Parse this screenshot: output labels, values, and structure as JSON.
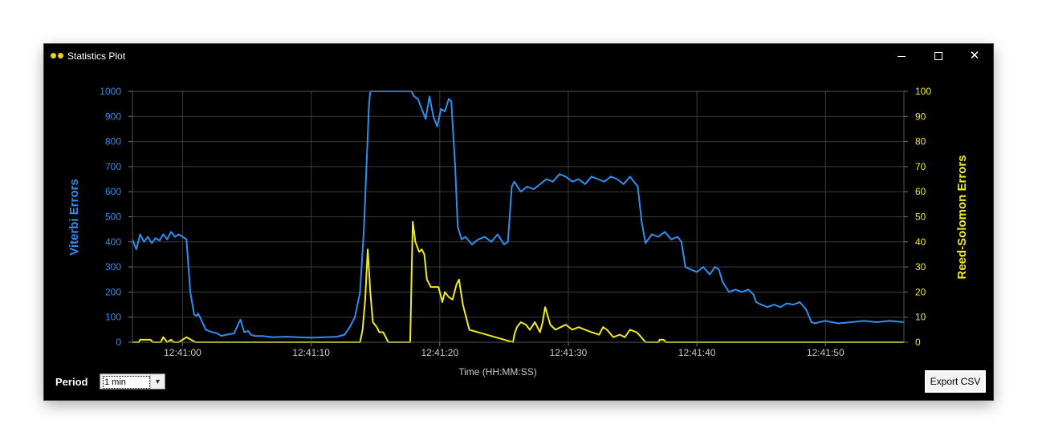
{
  "window": {
    "title": "Statistics Plot",
    "minimize_glyph": "",
    "close_glyph": "✕"
  },
  "controls": {
    "period_label": "Period",
    "period_value": "1 min",
    "export_label": "Export CSV"
  },
  "colors": {
    "background": "#000000",
    "grid": "#3c3c3c",
    "viterbi": "#2f8ff0",
    "reed_solomon": "#f2ec1f",
    "axis_text": "#c8c8c8"
  },
  "chart_data": {
    "type": "line",
    "title": "",
    "xlabel": "Time (HH:MM:SS)",
    "x_ticks": [
      "12:41:00",
      "12:41:10",
      "12:41:20",
      "12:41:30",
      "12:41:40",
      "12:41:50"
    ],
    "x_tick_seconds": [
      0,
      10,
      20,
      30,
      40,
      50
    ],
    "xlim": [
      -3.9,
      56.1
    ],
    "ylabel_left": "Viterbi Errors",
    "ylim_left": [
      0,
      1000
    ],
    "yticks_left": [
      "0",
      "100",
      "200",
      "300",
      "400",
      "500",
      "600",
      "700",
      "800",
      "900",
      "1000"
    ],
    "ylabel_right": "Reed-Solomon Errors",
    "ylim_right": [
      0,
      100
    ],
    "yticks_right": [
      "0",
      "10",
      "20",
      "30",
      "40",
      "50",
      "60",
      "70",
      "80",
      "90",
      "100"
    ],
    "grid": true,
    "series": [
      {
        "name": "Viterbi Errors",
        "axis": "left",
        "x": [
          -3.9,
          -3.6,
          -3.3,
          -3.0,
          -2.7,
          -2.4,
          -2.1,
          -1.8,
          -1.5,
          -1.2,
          -0.9,
          -0.6,
          -0.3,
          0.3,
          0.6,
          0.9,
          1.1,
          1.2,
          1.4,
          1.8,
          2.3,
          2.7,
          3.0,
          3.4,
          4.0,
          4.5,
          4.8,
          5.1,
          5.3,
          5.6,
          6.2,
          7.0,
          8.0,
          9.0,
          10.0,
          11.0,
          12.0,
          12.6,
          13.0,
          13.4,
          13.8,
          14.1,
          14.3,
          14.5,
          14.6,
          17.8,
          18.0,
          18.3,
          18.6,
          18.9,
          19.2,
          19.5,
          19.8,
          20.1,
          20.4,
          20.7,
          20.9,
          21.2,
          21.4,
          21.7,
          22.0,
          22.5,
          23.0,
          23.5,
          24.0,
          24.5,
          25.0,
          25.3,
          25.6,
          25.8,
          26.3,
          26.8,
          27.3,
          27.8,
          28.3,
          28.8,
          29.3,
          29.8,
          30.3,
          30.8,
          31.3,
          31.8,
          32.3,
          32.8,
          33.3,
          33.8,
          34.3,
          34.8,
          35.1,
          35.4,
          35.7,
          36.0,
          36.5,
          37.0,
          37.5,
          38.0,
          38.5,
          38.8,
          39.1,
          39.5,
          40.0,
          40.5,
          41.0,
          41.4,
          41.7,
          42.0,
          42.5,
          43.0,
          43.5,
          44.0,
          44.4,
          44.6,
          45.0,
          45.5,
          46.0,
          46.5,
          47.0,
          47.5,
          48.0,
          48.5,
          48.9,
          49.2,
          49.5,
          50.0,
          51.0,
          52.0,
          53.0,
          54.0,
          55.0,
          56.1
        ],
        "y": [
          410,
          370,
          430,
          400,
          420,
          395,
          415,
          405,
          430,
          410,
          440,
          420,
          430,
          410,
          200,
          110,
          105,
          115,
          95,
          50,
          40,
          35,
          25,
          30,
          35,
          90,
          40,
          45,
          30,
          25,
          25,
          20,
          22,
          20,
          18,
          20,
          22,
          30,
          60,
          100,
          200,
          450,
          700,
          950,
          1000,
          1000,
          980,
          970,
          930,
          890,
          980,
          900,
          860,
          930,
          920,
          970,
          960,
          700,
          460,
          410,
          420,
          390,
          410,
          420,
          400,
          430,
          390,
          400,
          620,
          640,
          600,
          620,
          610,
          630,
          650,
          640,
          670,
          660,
          640,
          650,
          630,
          660,
          650,
          640,
          660,
          650,
          630,
          660,
          640,
          620,
          480,
          395,
          430,
          420,
          440,
          410,
          420,
          400,
          300,
          290,
          280,
          300,
          270,
          300,
          290,
          240,
          200,
          210,
          200,
          210,
          190,
          160,
          150,
          140,
          150,
          140,
          155,
          150,
          160,
          130,
          80,
          75,
          80,
          85,
          75,
          80,
          85,
          80,
          85,
          80
        ],
        "color": "#2f8ff0"
      },
      {
        "name": "Reed-Solomon Errors",
        "axis": "right",
        "x": [
          -3.9,
          -3.4,
          -3.3,
          -2.5,
          -2.3,
          -2.1,
          -1.7,
          -1.5,
          -1.2,
          -0.9,
          -0.7,
          -0.3,
          0.3,
          1.0,
          13.8,
          14.0,
          14.2,
          14.4,
          14.6,
          14.8,
          15.1,
          15.3,
          15.6,
          15.8,
          16.0,
          17.7,
          17.8,
          17.9,
          18.1,
          18.4,
          18.6,
          18.8,
          19.0,
          19.3,
          19.6,
          19.9,
          20.2,
          20.4,
          20.7,
          21.0,
          21.3,
          21.5,
          21.8,
          22.3,
          25.7,
          25.8,
          26.0,
          26.3,
          26.7,
          27.0,
          27.4,
          27.8,
          28.0,
          28.2,
          28.6,
          29.0,
          29.4,
          29.8,
          30.3,
          30.8,
          31.3,
          31.8,
          32.4,
          32.7,
          33.0,
          33.5,
          34.0,
          34.4,
          34.8,
          35.3,
          35.5,
          36.0,
          37.0,
          37.1,
          37.4,
          37.6,
          38.0,
          56.1
        ],
        "y": [
          0,
          0,
          1,
          1,
          0,
          0,
          0,
          2,
          0,
          1,
          0,
          0,
          2,
          0,
          0,
          5,
          17,
          37,
          20,
          8,
          6,
          4,
          4,
          2,
          0,
          0,
          25,
          48,
          40,
          36,
          37,
          35,
          25,
          22,
          22,
          22,
          16,
          20,
          18,
          17,
          23,
          25,
          15,
          5,
          0,
          3,
          6,
          8,
          7,
          5,
          8,
          4,
          8,
          14,
          7,
          5,
          6,
          7,
          5,
          6,
          5,
          4,
          3,
          6,
          5,
          2,
          3,
          2,
          5,
          4,
          3,
          0,
          0,
          1,
          1,
          0,
          0,
          0
        ],
        "color": "#f2ec1f"
      }
    ]
  }
}
